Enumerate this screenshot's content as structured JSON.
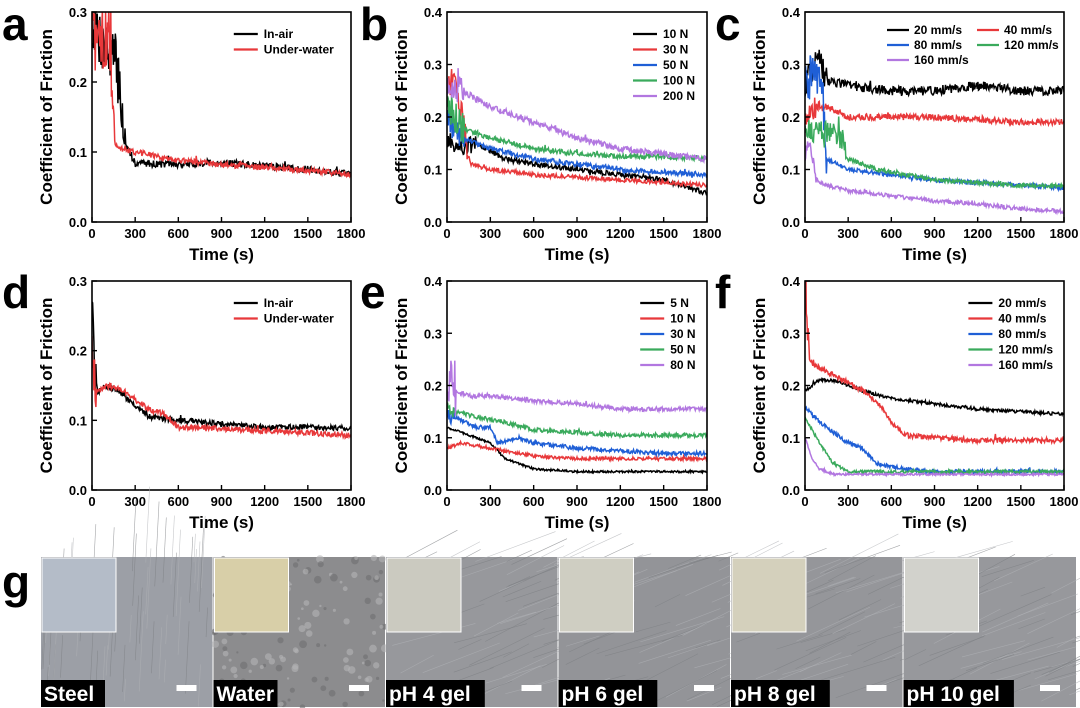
{
  "panel_g": {
    "letter": "g",
    "samples": [
      {
        "label": "Steel",
        "surface": "#9c9fa6",
        "swatch": "#b4bcc8"
      },
      {
        "label": "Water",
        "surface": "#8c8c8e",
        "swatch": "#d8cfa8"
      },
      {
        "label": "pH 4 gel",
        "surface": "#97989c",
        "swatch": "#cbcac0"
      },
      {
        "label": "pH 6 gel",
        "surface": "#939498",
        "swatch": "#cfcec2"
      },
      {
        "label": "pH 8 gel",
        "surface": "#95969a",
        "swatch": "#d4d0bc"
      },
      {
        "label": "pH 10 gel",
        "surface": "#97989c",
        "swatch": "#d2d2cc"
      }
    ]
  },
  "chart_data": [
    {
      "panel": "a",
      "type": "line",
      "xlabel": "Time (s)",
      "ylabel": "Coefficient  of Friction",
      "xlim": [
        0,
        1800
      ],
      "ylim": [
        0,
        0.3
      ],
      "xticks": [
        0,
        300,
        600,
        900,
        1200,
        1500,
        1800
      ],
      "yticks": [
        0.0,
        0.1,
        0.2,
        0.3
      ],
      "legend_position": "top-right",
      "series": [
        {
          "name": "In-air",
          "color": "#000000",
          "noise": 0.005,
          "spike": 0.04,
          "spike_end": 230,
          "x": [
            0,
            10,
            40,
            80,
            120,
            160,
            190,
            230,
            300,
            450,
            600,
            900,
            1200,
            1500,
            1800
          ],
          "y": [
            0.28,
            0.29,
            0.27,
            0.25,
            0.24,
            0.23,
            0.2,
            0.11,
            0.085,
            0.083,
            0.082,
            0.085,
            0.08,
            0.075,
            0.068
          ]
        },
        {
          "name": "Under-water",
          "color": "#e8383a",
          "noise": 0.004,
          "spike": 0.045,
          "spike_end": 160,
          "x": [
            0,
            10,
            40,
            80,
            120,
            140,
            160,
            200,
            300,
            600,
            900,
            1200,
            1500,
            1800
          ],
          "y": [
            0.28,
            0.27,
            0.25,
            0.26,
            0.28,
            0.2,
            0.11,
            0.105,
            0.1,
            0.088,
            0.082,
            0.078,
            0.074,
            0.068
          ]
        }
      ]
    },
    {
      "panel": "b",
      "type": "line",
      "xlabel": "Time (s)",
      "ylabel": "Coefficient  of Friction",
      "xlim": [
        0,
        1800
      ],
      "ylim": [
        0,
        0.4
      ],
      "xticks": [
        0,
        300,
        600,
        900,
        1200,
        1500,
        1800
      ],
      "yticks": [
        0.0,
        0.1,
        0.2,
        0.3,
        0.4
      ],
      "legend_position": "top-right",
      "series": [
        {
          "name": "10 N",
          "color": "#000000",
          "noise": 0.005,
          "spike": 0.012,
          "spike_end": 200,
          "x": [
            0,
            30,
            100,
            200,
            400,
            600,
            900,
            1200,
            1500,
            1800
          ],
          "y": [
            0.16,
            0.15,
            0.14,
            0.15,
            0.12,
            0.11,
            0.1,
            0.09,
            0.08,
            0.055
          ]
        },
        {
          "name": "30 N",
          "color": "#e8383a",
          "noise": 0.004,
          "spike": 0.03,
          "spike_end": 150,
          "x": [
            0,
            30,
            100,
            160,
            300,
            600,
            900,
            1200,
            1500,
            1800
          ],
          "y": [
            0.28,
            0.27,
            0.22,
            0.11,
            0.1,
            0.09,
            0.085,
            0.08,
            0.075,
            0.07
          ]
        },
        {
          "name": "50 N",
          "color": "#1f5fd6",
          "noise": 0.005,
          "spike": 0.02,
          "spike_end": 120,
          "x": [
            0,
            30,
            100,
            300,
            600,
            900,
            1200,
            1500,
            1800
          ],
          "y": [
            0.22,
            0.18,
            0.16,
            0.14,
            0.12,
            0.11,
            0.1,
            0.095,
            0.09
          ]
        },
        {
          "name": "100 N",
          "color": "#3aaa5c",
          "noise": 0.005,
          "spike": 0.025,
          "spike_end": 120,
          "x": [
            0,
            30,
            100,
            300,
            600,
            900,
            1200,
            1500,
            1800
          ],
          "y": [
            0.23,
            0.21,
            0.18,
            0.16,
            0.14,
            0.13,
            0.125,
            0.125,
            0.12
          ]
        },
        {
          "name": "200 N",
          "color": "#b277e0",
          "noise": 0.006,
          "spike": 0.02,
          "spike_end": 120,
          "x": [
            0,
            30,
            100,
            300,
            600,
            900,
            1200,
            1500,
            1800
          ],
          "y": [
            0.25,
            0.26,
            0.25,
            0.22,
            0.19,
            0.16,
            0.14,
            0.13,
            0.12
          ]
        }
      ]
    },
    {
      "panel": "c",
      "type": "line",
      "xlabel": "Time (s)",
      "ylabel": "Coefficient  of Friction",
      "xlim": [
        0,
        1800
      ],
      "ylim": [
        0,
        0.4
      ],
      "xticks": [
        0,
        300,
        600,
        900,
        1200,
        1500,
        1800
      ],
      "yticks": [
        0.0,
        0.1,
        0.2,
        0.3,
        0.4
      ],
      "legend_position": "top-right",
      "series": [
        {
          "name": "20 mm/s",
          "color": "#000000",
          "noise": 0.009,
          "spike": 0.02,
          "spike_end": 150,
          "x": [
            0,
            50,
            100,
            150,
            300,
            600,
            900,
            1200,
            1500,
            1800
          ],
          "y": [
            0.25,
            0.29,
            0.3,
            0.27,
            0.26,
            0.25,
            0.25,
            0.26,
            0.25,
            0.25
          ]
        },
        {
          "name": "40 mm/s",
          "color": "#e8383a",
          "noise": 0.006,
          "spike": 0.01,
          "spike_end": 100,
          "x": [
            0,
            50,
            150,
            300,
            600,
            900,
            1200,
            1500,
            1800
          ],
          "y": [
            0.2,
            0.21,
            0.22,
            0.2,
            0.2,
            0.2,
            0.195,
            0.19,
            0.19
          ]
        },
        {
          "name": "80 mm/s",
          "color": "#1f5fd6",
          "noise": 0.004,
          "spike": 0.04,
          "spike_end": 150,
          "x": [
            0,
            50,
            120,
            150,
            300,
            600,
            900,
            1200,
            1500,
            1800
          ],
          "y": [
            0.26,
            0.28,
            0.25,
            0.12,
            0.1,
            0.09,
            0.08,
            0.075,
            0.07,
            0.065
          ]
        },
        {
          "name": "120 mm/s",
          "color": "#3aaa5c",
          "noise": 0.004,
          "spike": 0.02,
          "spike_end": 300,
          "x": [
            0,
            50,
            150,
            250,
            300,
            500,
            900,
            1200,
            1500,
            1800
          ],
          "y": [
            0.19,
            0.17,
            0.17,
            0.16,
            0.12,
            0.1,
            0.08,
            0.075,
            0.07,
            0.068
          ]
        },
        {
          "name": "160 mm/s",
          "color": "#b277e0",
          "noise": 0.004,
          "spike": 0.01,
          "spike_end": 80,
          "x": [
            0,
            30,
            80,
            150,
            300,
            600,
            900,
            1200,
            1500,
            1800
          ],
          "y": [
            0.12,
            0.16,
            0.08,
            0.07,
            0.06,
            0.05,
            0.04,
            0.035,
            0.025,
            0.02
          ]
        }
      ]
    },
    {
      "panel": "d",
      "type": "line",
      "xlabel": "Time (s)",
      "ylabel": "Coefficient  of Friction",
      "xlim": [
        0,
        1800
      ],
      "ylim": [
        0,
        0.3
      ],
      "xticks": [
        0,
        300,
        600,
        900,
        1200,
        1500,
        1800
      ],
      "yticks": [
        0.0,
        0.1,
        0.2,
        0.3
      ],
      "legend_position": "top-right",
      "series": [
        {
          "name": "In-air",
          "color": "#000000",
          "noise": 0.004,
          "spike": 0.03,
          "spike_end": 30,
          "x": [
            0,
            10,
            40,
            100,
            200,
            300,
            400,
            600,
            900,
            1200,
            1500,
            1800
          ],
          "y": [
            0.28,
            0.2,
            0.14,
            0.15,
            0.14,
            0.12,
            0.105,
            0.1,
            0.095,
            0.09,
            0.09,
            0.088
          ]
        },
        {
          "name": "Under-water",
          "color": "#e8383a",
          "noise": 0.004,
          "spike": 0.03,
          "spike_end": 30,
          "x": [
            0,
            10,
            40,
            100,
            200,
            300,
            400,
            500,
            600,
            900,
            1200,
            1500,
            1800
          ],
          "y": [
            0.23,
            0.17,
            0.14,
            0.15,
            0.145,
            0.13,
            0.115,
            0.11,
            0.09,
            0.088,
            0.085,
            0.082,
            0.078
          ]
        }
      ]
    },
    {
      "panel": "e",
      "type": "line",
      "xlabel": "Time (s)",
      "ylabel": "Coefficient  of Friction",
      "xlim": [
        0,
        1800
      ],
      "ylim": [
        0,
        0.4
      ],
      "xticks": [
        0,
        300,
        600,
        900,
        1200,
        1500,
        1800
      ],
      "yticks": [
        0.0,
        0.1,
        0.2,
        0.3,
        0.4
      ],
      "legend_position": "top-right",
      "series": [
        {
          "name": "5 N",
          "color": "#000000",
          "noise": 0.002,
          "spike": 0.0,
          "spike_end": 0,
          "x": [
            0,
            100,
            200,
            300,
            400,
            500,
            600,
            900,
            1200,
            1500,
            1800
          ],
          "y": [
            0.12,
            0.11,
            0.1,
            0.09,
            0.06,
            0.05,
            0.04,
            0.035,
            0.035,
            0.035,
            0.035
          ]
        },
        {
          "name": "10 N",
          "color": "#e8383a",
          "noise": 0.003,
          "spike": 0.0,
          "spike_end": 0,
          "x": [
            0,
            100,
            300,
            600,
            900,
            1200,
            1500,
            1800
          ],
          "y": [
            0.08,
            0.09,
            0.08,
            0.065,
            0.06,
            0.06,
            0.06,
            0.06
          ]
        },
        {
          "name": "30 N",
          "color": "#1f5fd6",
          "noise": 0.004,
          "spike": 0.01,
          "spike_end": 50,
          "x": [
            0,
            50,
            200,
            300,
            350,
            500,
            600,
            900,
            1200,
            1500,
            1800
          ],
          "y": [
            0.14,
            0.14,
            0.12,
            0.12,
            0.09,
            0.1,
            0.09,
            0.08,
            0.075,
            0.07,
            0.07
          ]
        },
        {
          "name": "50 N",
          "color": "#3aaa5c",
          "noise": 0.004,
          "spike": 0.01,
          "spike_end": 50,
          "x": [
            0,
            50,
            200,
            400,
            600,
            900,
            1200,
            1500,
            1800
          ],
          "y": [
            0.155,
            0.15,
            0.14,
            0.13,
            0.115,
            0.11,
            0.105,
            0.105,
            0.105
          ]
        },
        {
          "name": "80 N",
          "color": "#b277e0",
          "noise": 0.004,
          "spike": 0.05,
          "spike_end": 60,
          "x": [
            0,
            30,
            60,
            150,
            300,
            600,
            900,
            1200,
            1500,
            1800
          ],
          "y": [
            0.2,
            0.24,
            0.19,
            0.18,
            0.18,
            0.17,
            0.165,
            0.155,
            0.155,
            0.155
          ]
        }
      ]
    },
    {
      "panel": "f",
      "type": "line",
      "xlabel": "Time (s)",
      "ylabel": "Coefficient  of Friction",
      "xlim": [
        0,
        1800
      ],
      "ylim": [
        0,
        0.4
      ],
      "xticks": [
        0,
        300,
        600,
        900,
        1200,
        1500,
        1800
      ],
      "yticks": [
        0.0,
        0.1,
        0.2,
        0.3,
        0.4
      ],
      "legend_position": "top-right",
      "series": [
        {
          "name": "20 mm/s",
          "color": "#000000",
          "noise": 0.003,
          "spike": 0.0,
          "spike_end": 0,
          "x": [
            0,
            50,
            100,
            200,
            400,
            600,
            900,
            1200,
            1500,
            1800
          ],
          "y": [
            0.19,
            0.2,
            0.21,
            0.21,
            0.19,
            0.175,
            0.165,
            0.155,
            0.15,
            0.145
          ]
        },
        {
          "name": "40 mm/s",
          "color": "#e8383a",
          "noise": 0.005,
          "spike": 0.06,
          "spike_end": 30,
          "x": [
            0,
            20,
            50,
            200,
            400,
            500,
            600,
            700,
            900,
            1200,
            1500,
            1800
          ],
          "y": [
            0.36,
            0.26,
            0.24,
            0.22,
            0.19,
            0.17,
            0.13,
            0.105,
            0.1,
            0.095,
            0.095,
            0.095
          ]
        },
        {
          "name": "80 mm/s",
          "color": "#1f5fd6",
          "noise": 0.004,
          "spike": 0.0,
          "spike_end": 0,
          "x": [
            0,
            100,
            300,
            400,
            500,
            600,
            700,
            900,
            1200,
            1500,
            1800
          ],
          "y": [
            0.16,
            0.13,
            0.09,
            0.08,
            0.05,
            0.045,
            0.04,
            0.035,
            0.035,
            0.035,
            0.035
          ]
        },
        {
          "name": "120 mm/s",
          "color": "#3aaa5c",
          "noise": 0.003,
          "spike": 0.0,
          "spike_end": 0,
          "x": [
            0,
            100,
            200,
            300,
            600,
            900,
            1200,
            1500,
            1800
          ],
          "y": [
            0.14,
            0.09,
            0.05,
            0.035,
            0.035,
            0.035,
            0.035,
            0.035,
            0.035
          ]
        },
        {
          "name": "160 mm/s",
          "color": "#b277e0",
          "noise": 0.002,
          "spike": 0.0,
          "spike_end": 0,
          "x": [
            0,
            50,
            100,
            200,
            300,
            600,
            900,
            1200,
            1500,
            1800
          ],
          "y": [
            0.1,
            0.06,
            0.04,
            0.03,
            0.03,
            0.03,
            0.03,
            0.03,
            0.03,
            0.03
          ]
        }
      ]
    }
  ]
}
